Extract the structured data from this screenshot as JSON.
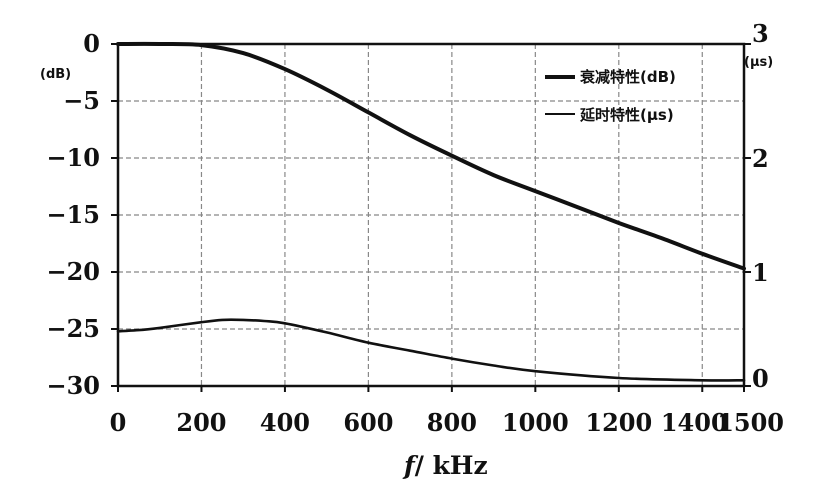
{
  "chart_data": {
    "type": "line",
    "grid": true,
    "legend_placement": "top-right",
    "xlabel_var": "f",
    "xlabel_unit": "/ kHz",
    "x_ticks": [
      "0",
      "200",
      "400",
      "600",
      "800",
      "1000",
      "1200",
      "1400",
      "1500"
    ],
    "x_tick_values": [
      0,
      200,
      400,
      600,
      800,
      1000,
      1200,
      1400,
      1500
    ],
    "xlim": [
      0,
      1500
    ],
    "y_left": {
      "unit": "(dB)",
      "ticks": [
        "0",
        "-5",
        "-10",
        "-15",
        "-20",
        "-25",
        "-30"
      ],
      "tick_values": [
        0,
        -5,
        -10,
        -15,
        -20,
        -25,
        -30
      ],
      "ylim": [
        -30,
        0
      ]
    },
    "y_right": {
      "unit": "(μs)",
      "ticks": [
        "3",
        "2",
        "1",
        "0"
      ],
      "tick_values": [
        3,
        2,
        1,
        0
      ],
      "ylim": [
        0,
        3
      ]
    },
    "series": [
      {
        "name": "衰减特性(dB)",
        "axis": "left",
        "x": [
          0,
          100,
          200,
          300,
          400,
          500,
          600,
          700,
          800,
          900,
          1000,
          1100,
          1200,
          1300,
          1400,
          1500
        ],
        "values": [
          0,
          0,
          -0.1,
          -0.8,
          -2.2,
          -4.0,
          -6.0,
          -8.0,
          -9.8,
          -11.5,
          -12.9,
          -14.3,
          -15.7,
          -17.0,
          -18.4,
          -19.7
        ]
      },
      {
        "name": "延时特性(μs)",
        "axis": "right",
        "x": [
          0,
          50,
          100,
          200,
          250,
          300,
          350,
          400,
          500,
          600,
          700,
          800,
          900,
          1000,
          1200,
          1400,
          1500
        ],
        "values": [
          0.48,
          0.49,
          0.51,
          0.56,
          0.58,
          0.58,
          0.57,
          0.55,
          0.47,
          0.38,
          0.31,
          0.24,
          0.18,
          0.13,
          0.07,
          0.05,
          0.05
        ]
      }
    ]
  }
}
